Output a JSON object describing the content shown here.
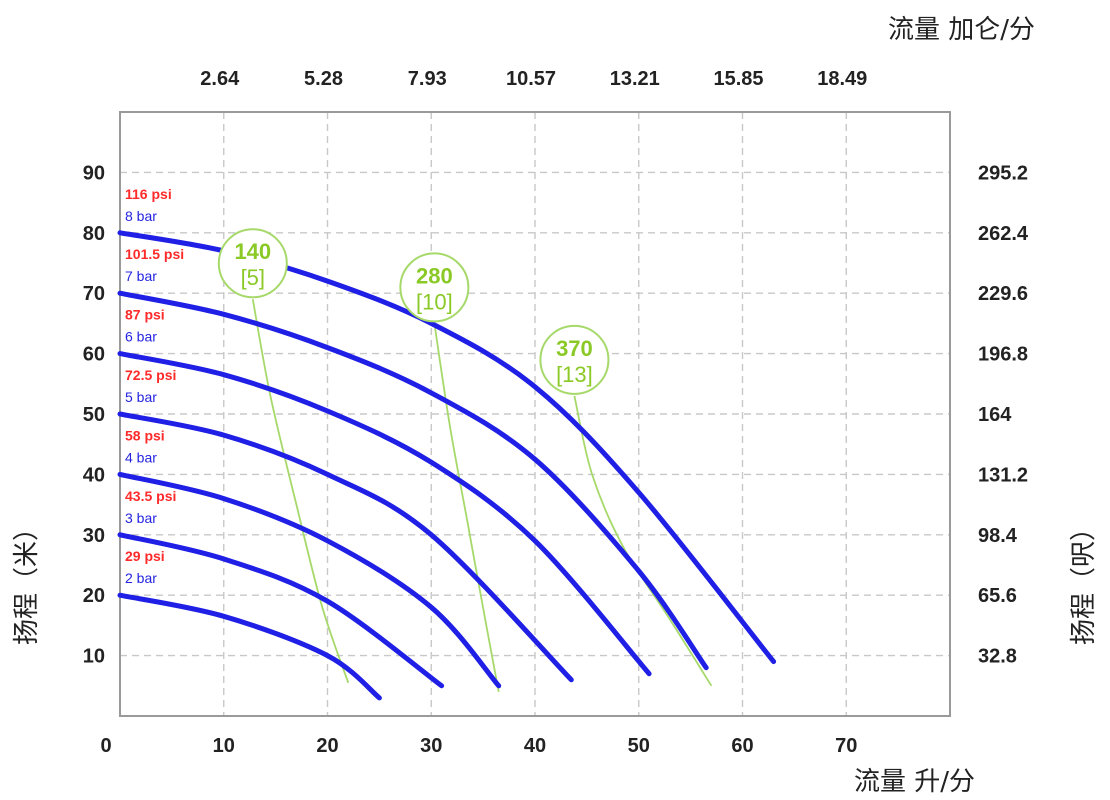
{
  "chart_data": {
    "type": "line",
    "x_axis": {
      "title": "流量 升/分",
      "ticks": [
        0,
        10,
        20,
        30,
        40,
        50,
        60,
        70
      ],
      "range": [
        0,
        80
      ]
    },
    "x2_axis": {
      "title": "流量 加仑/分",
      "ticks": [
        {
          "at": 10,
          "label": "2.64"
        },
        {
          "at": 20,
          "label": "5.28"
        },
        {
          "at": 30,
          "label": "7.93"
        },
        {
          "at": 40,
          "label": "10.57"
        },
        {
          "at": 50,
          "label": "13.21"
        },
        {
          "at": 60,
          "label": "15.85"
        },
        {
          "at": 70,
          "label": "18.49"
        }
      ]
    },
    "y_axis": {
      "title": "扬程（米）",
      "ticks": [
        10,
        20,
        30,
        40,
        50,
        60,
        70,
        80,
        90
      ],
      "range": [
        0,
        100
      ]
    },
    "y2_axis": {
      "title": "扬程（呎）",
      "ticks": [
        {
          "at": 10,
          "label": "32.8"
        },
        {
          "at": 20,
          "label": "65.6"
        },
        {
          "at": 30,
          "label": "98.4"
        },
        {
          "at": 40,
          "label": "131.2"
        },
        {
          "at": 50,
          "label": "164"
        },
        {
          "at": 60,
          "label": "196.8"
        },
        {
          "at": 70,
          "label": "229.6"
        },
        {
          "at": 80,
          "label": "262.4"
        },
        {
          "at": 90,
          "label": "295.2"
        }
      ]
    },
    "grid": true,
    "series": [
      {
        "name": "2 bar",
        "psi": "29 psi",
        "x": [
          0,
          10,
          20,
          25
        ],
        "y": [
          20,
          16.5,
          10,
          3
        ]
      },
      {
        "name": "3 bar",
        "psi": "43.5 psi",
        "x": [
          0,
          10,
          20,
          31
        ],
        "y": [
          30,
          26,
          19,
          5
        ]
      },
      {
        "name": "4 bar",
        "psi": "58 psi",
        "x": [
          0,
          10,
          20,
          30,
          36.5
        ],
        "y": [
          40,
          36,
          29,
          18,
          5
        ]
      },
      {
        "name": "5 bar",
        "psi": "72.5 psi",
        "x": [
          0,
          10,
          20,
          30,
          43.5
        ],
        "y": [
          50,
          46.5,
          40,
          30,
          6
        ]
      },
      {
        "name": "6 bar",
        "psi": "87 psi",
        "x": [
          0,
          10,
          20,
          30,
          40,
          51
        ],
        "y": [
          60,
          56.5,
          50.5,
          42,
          29,
          7
        ]
      },
      {
        "name": "7 bar",
        "psi": "101.5 psi",
        "x": [
          0,
          10,
          20,
          30,
          40,
          50,
          56.5
        ],
        "y": [
          70,
          66.5,
          61,
          53.5,
          42.5,
          24,
          8
        ]
      },
      {
        "name": "8 bar",
        "psi": "116 psi",
        "x": [
          0,
          10,
          20,
          30,
          40,
          50,
          63
        ],
        "y": [
          80,
          77,
          72,
          65,
          54.5,
          37,
          9
        ]
      }
    ],
    "air_consumption": [
      {
        "value": "140",
        "bracket": "[5]",
        "x": [
          12.8,
          14.5,
          17,
          19.5,
          22
        ],
        "y": [
          69,
          53,
          35,
          18,
          5.5
        ]
      },
      {
        "value": "280",
        "bracket": "[10]",
        "x": [
          30.3,
          31.8,
          33.5,
          35.2,
          36.5
        ],
        "y": [
          65,
          48,
          32,
          16,
          4
        ]
      },
      {
        "value": "370",
        "bracket": "[13]",
        "x": [
          43.8,
          45.5,
          48.5,
          53,
          57
        ],
        "y": [
          53,
          40,
          28,
          16,
          5
        ]
      }
    ]
  }
}
